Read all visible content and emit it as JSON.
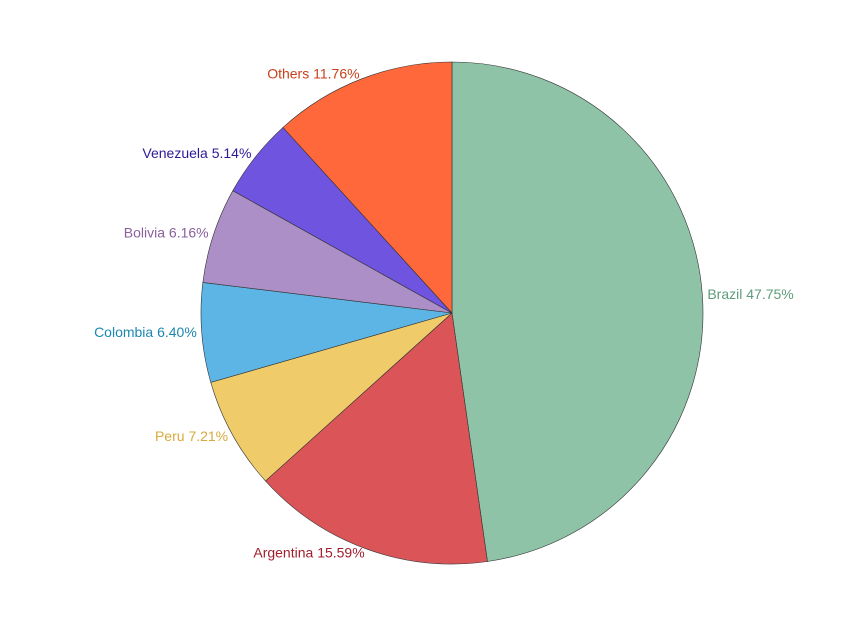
{
  "chart_data": {
    "type": "pie",
    "categories": [
      "Brazil",
      "Argentina",
      "Peru",
      "Colombia",
      "Bolivia",
      "Venezuela",
      "Others"
    ],
    "values": [
      47.75,
      15.59,
      7.21,
      6.4,
      6.16,
      5.14,
      11.76
    ],
    "value_labels": [
      "47.75%",
      "15.59%",
      "7.21%",
      "6.40%",
      "6.16%",
      "5.14%",
      "11.76%"
    ],
    "colors": [
      "#8fc3a8",
      "#db5558",
      "#efcb6a",
      "#5db5e5",
      "#ab8fc6",
      "#6e54de",
      "#fe683a"
    ],
    "label_colors": [
      "#5e9c7c",
      "#a11e2c",
      "#d9a93c",
      "#1b88b0",
      "#8a5f9c",
      "#2c1a98",
      "#c8401a"
    ]
  }
}
